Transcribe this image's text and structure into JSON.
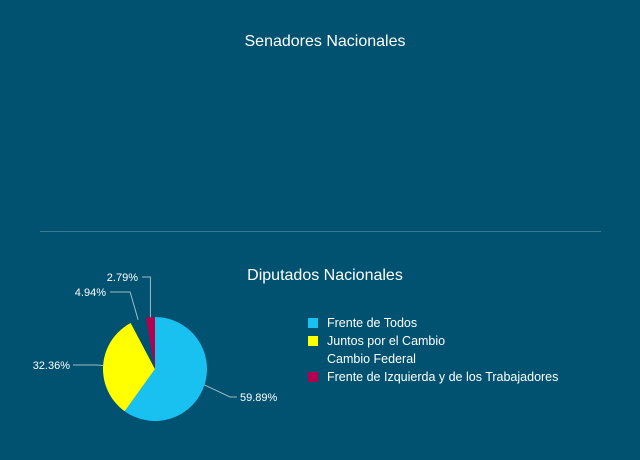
{
  "sections": {
    "senado_title": "Senadores Nacionales",
    "diputados_title": "Diputados Nacionales"
  },
  "chart_data": [
    {
      "type": "pie",
      "title": "Senadores Nacionales",
      "categories": [],
      "values": []
    },
    {
      "type": "pie",
      "title": "Diputados Nacionales",
      "categories": [
        "Frente de Todos",
        "Juntos por el Cambio",
        "Cambio Federal",
        "Frente de Izquierda y de los Trabajadores"
      ],
      "values": [
        59.89,
        32.36,
        4.94,
        2.79
      ],
      "labels": [
        "59.89%",
        "32.36%",
        "4.94%",
        "2.79%"
      ],
      "colors": [
        "#18c1ef",
        "#ffff00",
        "#005270",
        "#b5004f"
      ],
      "legend_placement": "right"
    }
  ]
}
